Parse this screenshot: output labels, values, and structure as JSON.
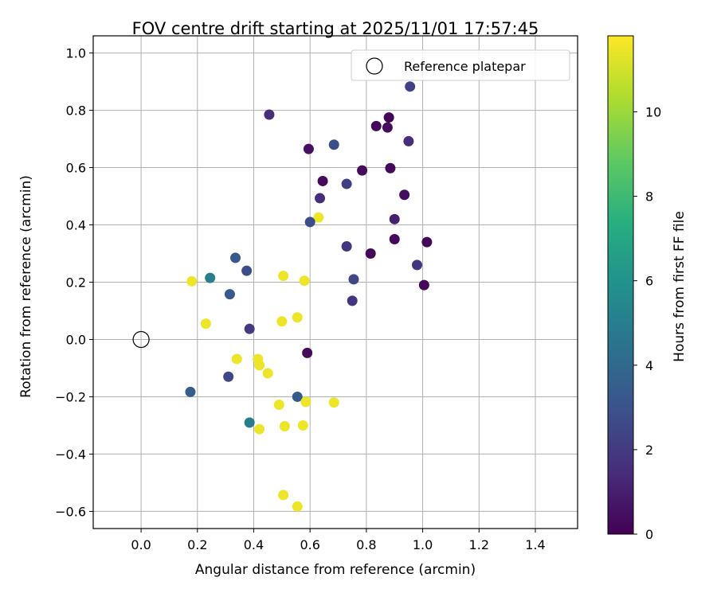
{
  "chart_data": {
    "type": "scatter",
    "title": "FOV centre drift starting at 2025/11/01 17:57:45",
    "xlabel": "Angular distance from reference (arcmin)",
    "ylabel": "Rotation from reference (arcmin)",
    "xlim": [
      -0.17,
      1.55
    ],
    "ylim": [
      -0.66,
      1.06
    ],
    "xticks": [
      0.0,
      0.2,
      0.4,
      0.6,
      0.8,
      1.0,
      1.2,
      1.4
    ],
    "xtick_labels": [
      "0.0",
      "0.2",
      "0.4",
      "0.6",
      "0.8",
      "1.0",
      "1.2",
      "1.4"
    ],
    "yticks": [
      -0.6,
      -0.4,
      -0.2,
      0.0,
      0.2,
      0.4,
      0.6,
      0.8,
      1.0
    ],
    "ytick_labels": [
      "−0.6",
      "−0.4",
      "−0.2",
      "0.0",
      "0.2",
      "0.4",
      "0.6",
      "0.8",
      "1.0"
    ],
    "grid": true,
    "legend": {
      "placement": "top-right",
      "label": "Reference platepar"
    },
    "reference_point": {
      "x": 0.0,
      "y": 0.0,
      "marker": "open-circle"
    },
    "colorbar": {
      "label": "Hours from first FF file",
      "colormap": "viridis",
      "range": [
        0,
        11.8
      ],
      "ticks": [
        0,
        2,
        4,
        6,
        8,
        10
      ],
      "tick_labels": [
        "0",
        "2",
        "4",
        "6",
        "8",
        "10"
      ]
    },
    "points": [
      {
        "x": 0.88,
        "y": 0.775,
        "hours": 0.1
      },
      {
        "x": 0.835,
        "y": 0.745,
        "hours": 0.2
      },
      {
        "x": 0.875,
        "y": 0.74,
        "hours": 0.3
      },
      {
        "x": 0.955,
        "y": 0.883,
        "hours": 2.3
      },
      {
        "x": 0.95,
        "y": 0.692,
        "hours": 1.5
      },
      {
        "x": 0.455,
        "y": 0.785,
        "hours": 1.5
      },
      {
        "x": 0.595,
        "y": 0.665,
        "hours": 0.5
      },
      {
        "x": 0.685,
        "y": 0.68,
        "hours": 2.8
      },
      {
        "x": 0.785,
        "y": 0.59,
        "hours": 0.3
      },
      {
        "x": 0.885,
        "y": 0.598,
        "hours": 0.3
      },
      {
        "x": 0.645,
        "y": 0.553,
        "hours": 0.3
      },
      {
        "x": 0.73,
        "y": 0.543,
        "hours": 2.2
      },
      {
        "x": 0.635,
        "y": 0.493,
        "hours": 1.5
      },
      {
        "x": 0.935,
        "y": 0.505,
        "hours": 0.4
      },
      {
        "x": 0.9,
        "y": 0.42,
        "hours": 1.0
      },
      {
        "x": 0.63,
        "y": 0.426,
        "hours": 11.5
      },
      {
        "x": 0.6,
        "y": 0.41,
        "hours": 2.8
      },
      {
        "x": 0.73,
        "y": 0.325,
        "hours": 1.8
      },
      {
        "x": 0.815,
        "y": 0.3,
        "hours": 0.2
      },
      {
        "x": 0.9,
        "y": 0.35,
        "hours": 0.3
      },
      {
        "x": 1.015,
        "y": 0.34,
        "hours": 0.2
      },
      {
        "x": 0.98,
        "y": 0.26,
        "hours": 1.8
      },
      {
        "x": 1.005,
        "y": 0.19,
        "hours": 0.2
      },
      {
        "x": 0.755,
        "y": 0.21,
        "hours": 2.5
      },
      {
        "x": 0.75,
        "y": 0.135,
        "hours": 1.8
      },
      {
        "x": 0.335,
        "y": 0.285,
        "hours": 3.2
      },
      {
        "x": 0.375,
        "y": 0.24,
        "hours": 2.8
      },
      {
        "x": 0.245,
        "y": 0.215,
        "hours": 5.0
      },
      {
        "x": 0.18,
        "y": 0.203,
        "hours": 11.5
      },
      {
        "x": 0.315,
        "y": 0.158,
        "hours": 3.3
      },
      {
        "x": 0.505,
        "y": 0.222,
        "hours": 11.5
      },
      {
        "x": 0.58,
        "y": 0.205,
        "hours": 11.5
      },
      {
        "x": 0.23,
        "y": 0.055,
        "hours": 11.5
      },
      {
        "x": 0.385,
        "y": 0.037,
        "hours": 2.0
      },
      {
        "x": 0.5,
        "y": 0.063,
        "hours": 11.5
      },
      {
        "x": 0.555,
        "y": 0.077,
        "hours": 11.5
      },
      {
        "x": 0.59,
        "y": -0.047,
        "hours": 0.3
      },
      {
        "x": 0.34,
        "y": -0.068,
        "hours": 11.5
      },
      {
        "x": 0.415,
        "y": -0.068,
        "hours": 11.5
      },
      {
        "x": 0.42,
        "y": -0.09,
        "hours": 11.5
      },
      {
        "x": 0.45,
        "y": -0.118,
        "hours": 11.5
      },
      {
        "x": 0.31,
        "y": -0.13,
        "hours": 2.5
      },
      {
        "x": 0.175,
        "y": -0.183,
        "hours": 3.5
      },
      {
        "x": 0.555,
        "y": -0.2,
        "hours": 3.3
      },
      {
        "x": 0.49,
        "y": -0.228,
        "hours": 11.5
      },
      {
        "x": 0.585,
        "y": -0.218,
        "hours": 11.5
      },
      {
        "x": 0.685,
        "y": -0.22,
        "hours": 11.5
      },
      {
        "x": 0.385,
        "y": -0.29,
        "hours": 5.0
      },
      {
        "x": 0.42,
        "y": -0.313,
        "hours": 11.5
      },
      {
        "x": 0.51,
        "y": -0.303,
        "hours": 11.5
      },
      {
        "x": 0.575,
        "y": -0.3,
        "hours": 11.5
      },
      {
        "x": 0.505,
        "y": -0.543,
        "hours": 11.5
      },
      {
        "x": 0.555,
        "y": -0.583,
        "hours": 11.5
      }
    ]
  }
}
